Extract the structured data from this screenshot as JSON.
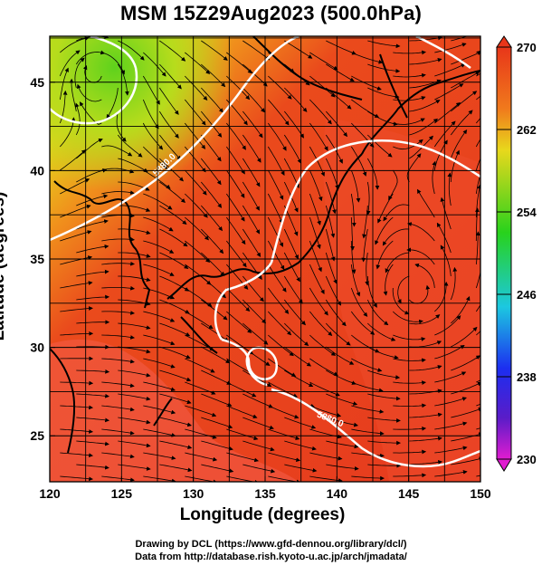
{
  "title": "MSM 15Z29Aug2023 (500.0hPa)",
  "xaxis": {
    "label": "Longitude (degrees)",
    "ticks": [
      "120",
      "125",
      "130",
      "135",
      "140",
      "145",
      "150"
    ],
    "range": [
      120,
      150
    ]
  },
  "yaxis": {
    "label": "Latitude  (degrees)",
    "ticks": [
      "25",
      "30",
      "35",
      "40",
      "45"
    ],
    "range": [
      22.4,
      47.6
    ]
  },
  "colorbar": {
    "ticks": [
      "270",
      "262",
      "254",
      "246",
      "238",
      "230"
    ],
    "range": [
      230,
      270
    ]
  },
  "contour_label": "5880.0",
  "credits": {
    "line1": "Drawing by DCL (https://www.gfd-dennou.org/library/dcl/)",
    "line2": "Data from http://database.rish.kyoto-u.ac.jp/arch/jmadata/"
  },
  "colors": {
    "warm": "#e8391c",
    "hot": "#f25c4a",
    "yellow": "#e8d41c",
    "green": "#8fd11c",
    "contour": "#ffffff"
  }
}
